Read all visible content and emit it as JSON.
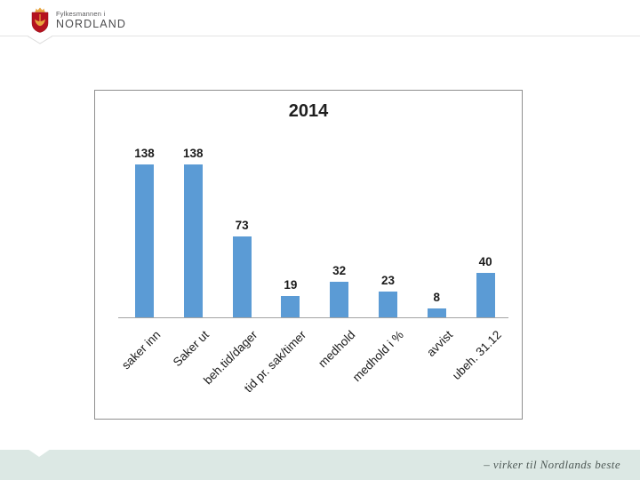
{
  "header": {
    "logo": {
      "org_small": "Fylkesmannen i",
      "org_large": "NORDLAND"
    }
  },
  "chart_data": {
    "type": "bar",
    "title": "2014",
    "categories": [
      "saker inn",
      "Saker ut",
      "beh.tid/dager",
      "tid pr. sak/timer",
      "medhold",
      "medhold i %",
      "avvist",
      "ubeh. 31.12"
    ],
    "values": [
      138,
      138,
      73,
      19,
      32,
      23,
      8,
      40
    ],
    "bar_color": "#5b9bd5",
    "data_labels": true,
    "xlabel": "",
    "ylabel": "",
    "ylim": [
      0,
      150
    ],
    "grid": false,
    "legend": false,
    "category_label_rotation_deg": -45
  },
  "footer": {
    "motto": "– virker til Nordlands beste",
    "background": "#dce8e4"
  },
  "colors": {
    "frame_border": "#8f8f8f",
    "axis_line": "#a3a3a3",
    "logo_red": "#b5121f",
    "logo_gold": "#e8a33d"
  }
}
